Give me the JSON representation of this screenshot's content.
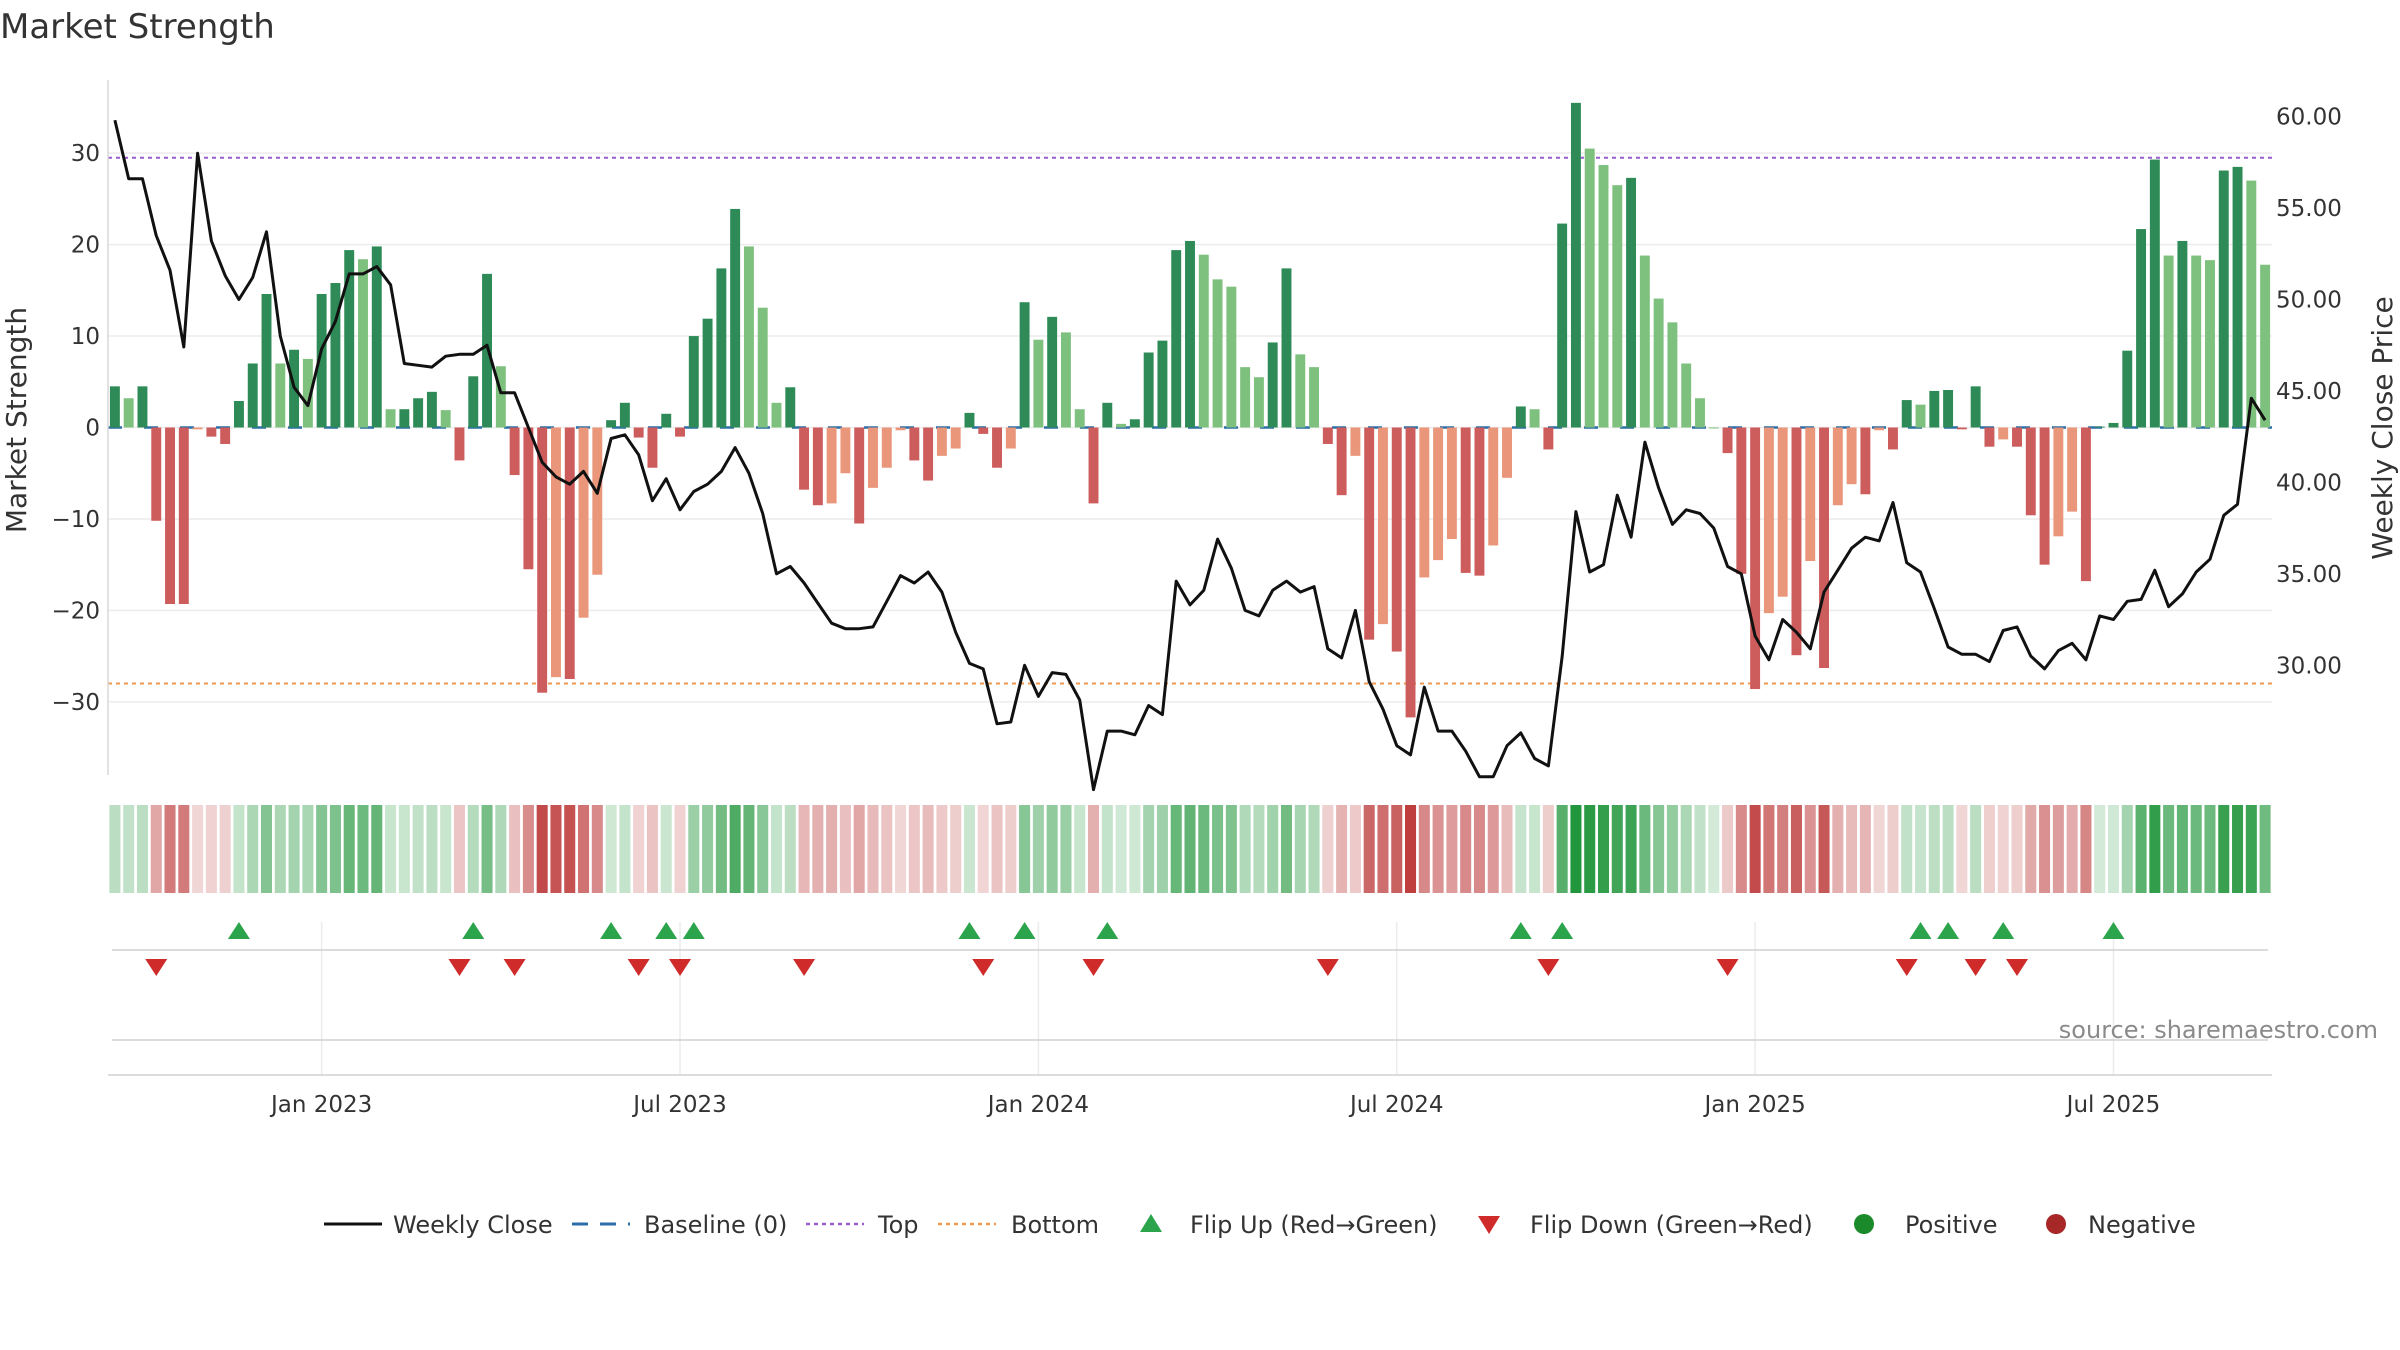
{
  "chart_data": {
    "type": "bar",
    "title": "Market Strength",
    "ylabel_left": "Market Strength",
    "ylabel_right": "Weekly Close Price",
    "ylim_left": [
      -38,
      38
    ],
    "ylim_right": [
      24.0,
      62.0
    ],
    "left_ticks": [
      "30",
      "20",
      "10",
      "0",
      "−10",
      "−20",
      "−30"
    ],
    "left_tick_values": [
      30,
      20,
      10,
      0,
      -10,
      -20,
      -30
    ],
    "right_ticks": [
      "60.00",
      "55.00",
      "50.00",
      "45.00",
      "40.00",
      "35.00",
      "30.00"
    ],
    "right_tick_values": [
      60,
      55,
      50,
      45,
      40,
      35,
      30
    ],
    "x_ticks": [
      "Jan 2023",
      "Jul 2023",
      "Jan 2024",
      "Jul 2024",
      "Jan 2025",
      "Jul 2025"
    ],
    "x_tick_weeks": [
      15,
      41,
      67,
      93,
      119,
      145
    ],
    "top_line": 29.5,
    "bottom_line": -28,
    "strength": [
      4.5,
      3.2,
      4.5,
      -10.2,
      -19.3,
      -19.3,
      -0.2,
      -1,
      -1.8,
      2.9,
      7,
      14.6,
      7,
      8.5,
      7.5,
      14.6,
      15.8,
      19.4,
      18.4,
      19.8,
      2,
      2,
      3.2,
      3.9,
      1.9,
      -3.6,
      5.6,
      16.8,
      6.7,
      -5.2,
      -15.5,
      -29,
      -27.3,
      -27.5,
      -20.8,
      -16.1,
      0.8,
      2.7,
      -1.1,
      -4.4,
      1.5,
      -1,
      10,
      11.9,
      17.4,
      23.9,
      19.8,
      13.1,
      2.7,
      4.4,
      -6.8,
      -8.5,
      -8.3,
      -5,
      -10.5,
      -6.6,
      -4.4,
      -0.3,
      -3.6,
      -5.8,
      -3.1,
      -2.3,
      1.6,
      -0.7,
      -4.4,
      -2.3,
      13.7,
      9.6,
      12.1,
      10.4,
      2,
      -8.3,
      2.7,
      0.4,
      0.9,
      8.2,
      9.5,
      19.4,
      20.4,
      18.9,
      16.2,
      15.4,
      6.6,
      5.5,
      9.3,
      17.4,
      8,
      6.6,
      -1.8,
      -7.4,
      -3.1,
      -23.2,
      -21.5,
      -24.5,
      -31.7,
      -16.4,
      -14.5,
      -12.2,
      -15.9,
      -16.2,
      -12.9,
      -5.5,
      2.3,
      2,
      -2.4,
      22.3,
      35.5,
      30.5,
      28.7,
      26.5,
      27.3,
      18.8,
      14.1,
      11.5,
      7,
      3.2,
      0,
      -2.8,
      -16,
      -28.6,
      -20.3,
      -18.5,
      -24.9,
      -14.6,
      -26.3,
      -8.5,
      -6.2,
      -7.3,
      -0.3,
      -2.4,
      3,
      2.5,
      4,
      4.1,
      -0.2,
      4.5,
      -2.1,
      -1.3,
      -2.1,
      -9.6,
      -15,
      -11.9,
      -9.2,
      -16.8,
      0.1,
      0.5,
      8.4,
      21.7,
      29.3,
      18.8,
      20.4,
      18.8,
      18.3,
      28.1,
      28.5,
      27,
      17.8
    ],
    "weekly_close": [
      59.8,
      56.6,
      56.6,
      53.5,
      51.6,
      47.4,
      58.0,
      53.2,
      51.3,
      50.0,
      51.2,
      53.7,
      48.0,
      45.2,
      44.2,
      47.3,
      48.8,
      51.4,
      51.4,
      51.8,
      50.8,
      46.5,
      46.4,
      46.3,
      46.9,
      47.0,
      47.0,
      47.5,
      44.9,
      44.9,
      43.0,
      41.1,
      40.3,
      39.9,
      40.6,
      39.4,
      42.4,
      42.6,
      41.5,
      39.0,
      40.2,
      38.5,
      39.5,
      39.9,
      40.6,
      41.9,
      40.5,
      38.3,
      35.0,
      35.4,
      34.5,
      33.4,
      32.3,
      32.0,
      32.0,
      32.1,
      33.5,
      34.9,
      34.5,
      35.1,
      34.0,
      31.8,
      30.1,
      29.8,
      26.8,
      26.9,
      30.0,
      28.3,
      29.6,
      29.5,
      28.1,
      23.2,
      26.4,
      26.4,
      26.2,
      27.8,
      27.3,
      34.6,
      33.3,
      34.1,
      36.9,
      35.3,
      33.0,
      32.7,
      34.1,
      34.6,
      34.0,
      34.3,
      30.9,
      30.4,
      33.0,
      29.1,
      27.6,
      25.6,
      25.1,
      28.8,
      26.4,
      26.4,
      25.3,
      23.9,
      23.9,
      25.6,
      26.3,
      24.9,
      24.5,
      30.5,
      38.4,
      35.1,
      35.5,
      39.3,
      37.0,
      42.2,
      39.7,
      37.7,
      38.5,
      38.3,
      37.5,
      35.4,
      35.0,
      31.6,
      30.3,
      32.5,
      31.8,
      30.9,
      34.0,
      35.2,
      36.4,
      37.0,
      36.8,
      38.9,
      35.6,
      35.1,
      33.1,
      31.0,
      30.6,
      30.6,
      30.2,
      31.9,
      32.1,
      30.5,
      29.8,
      30.8,
      31.2,
      30.3,
      32.7,
      32.5,
      33.5,
      33.6,
      35.2,
      33.2,
      33.9,
      35.1,
      35.8,
      38.2,
      38.8,
      44.6,
      43.4
    ],
    "flip_up_weeks": [
      9,
      26,
      36,
      40,
      42,
      62,
      66,
      72,
      102,
      105,
      131,
      133,
      137,
      145
    ],
    "flip_down_weeks": [
      3,
      25,
      29,
      38,
      41,
      50,
      63,
      71,
      88,
      104,
      117,
      130,
      135,
      138
    ],
    "colors": {
      "positive": "#1a8a2a",
      "negative": "#a82828",
      "close_line": "#111111",
      "baseline": "#2c6fa8",
      "top_line": "#9a5fcf",
      "bottom_line": "#f0994f",
      "flip_up": "#2ca44c",
      "flip_down": "#d02b2b"
    },
    "legend": [
      {
        "label": "Weekly Close",
        "symbol": "line"
      },
      {
        "label": "Baseline (0)",
        "symbol": "dash"
      },
      {
        "label": "Top",
        "symbol": "dot-purple"
      },
      {
        "label": "Bottom",
        "symbol": "dot-orange"
      },
      {
        "label": "Flip Up (Red→Green)",
        "symbol": "tri-up"
      },
      {
        "label": "Flip Down (Green→Red)",
        "symbol": "tri-down"
      },
      {
        "label": "Positive",
        "symbol": "circle-green"
      },
      {
        "label": "Negative",
        "symbol": "circle-red"
      }
    ],
    "legend_position": "bottom"
  },
  "source": "source: sharemaestro.com"
}
